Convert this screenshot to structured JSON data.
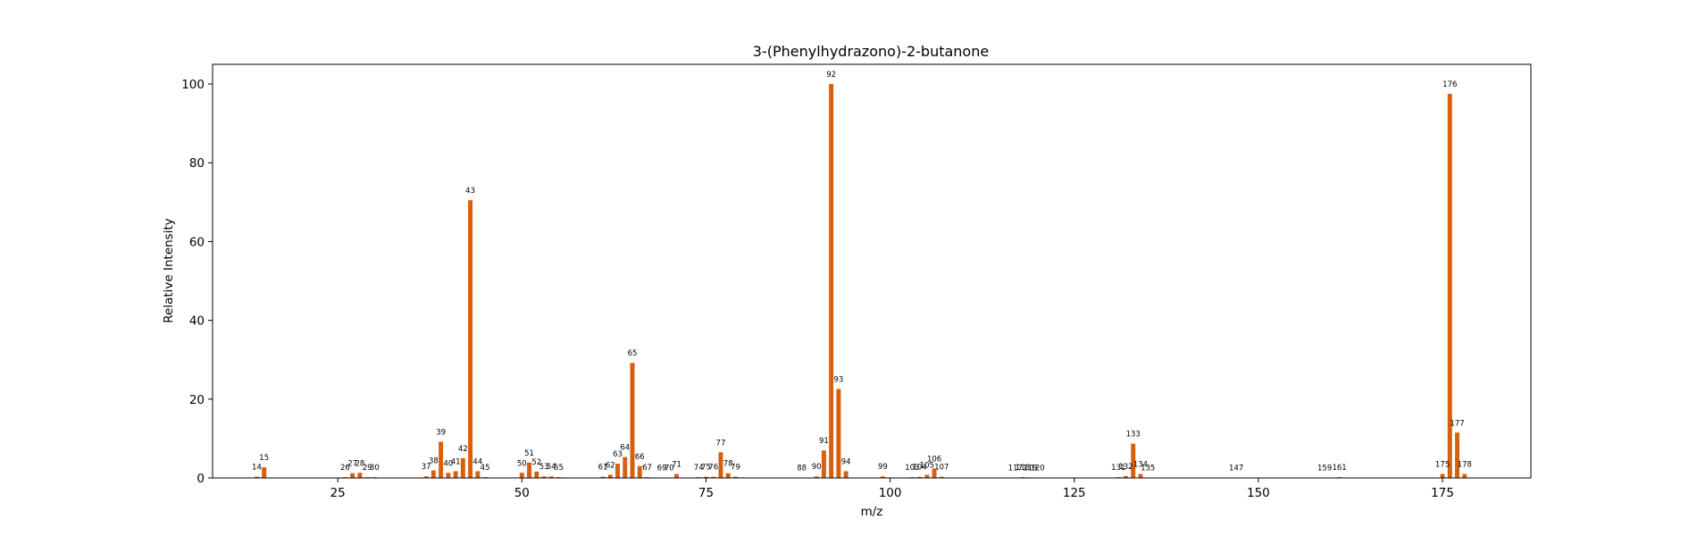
{
  "chart_data": {
    "type": "bar",
    "title": "3-(Phenylhydrazono)-2-butanone",
    "xlabel": "m/z",
    "ylabel": "Relative Intensity",
    "xlim": [
      8,
      187
    ],
    "ylim": [
      0,
      105
    ],
    "xticks": [
      25,
      50,
      75,
      100,
      125,
      150,
      175
    ],
    "yticks": [
      0,
      20,
      40,
      60,
      80,
      100
    ],
    "bar_color": "#d95f0e",
    "grid": false,
    "legend": "none",
    "peaks": [
      {
        "mz": 14,
        "intensity": 0.3
      },
      {
        "mz": 15,
        "intensity": 2.7
      },
      {
        "mz": 26,
        "intensity": 0.2
      },
      {
        "mz": 27,
        "intensity": 1.2
      },
      {
        "mz": 28,
        "intensity": 1.3
      },
      {
        "mz": 29,
        "intensity": 0.2
      },
      {
        "mz": 30,
        "intensity": 0.2
      },
      {
        "mz": 37,
        "intensity": 0.4
      },
      {
        "mz": 38,
        "intensity": 1.9
      },
      {
        "mz": 39,
        "intensity": 9.2
      },
      {
        "mz": 40,
        "intensity": 1.3
      },
      {
        "mz": 41,
        "intensity": 1.7
      },
      {
        "mz": 42,
        "intensity": 5.0
      },
      {
        "mz": 43,
        "intensity": 70.5
      },
      {
        "mz": 44,
        "intensity": 1.7
      },
      {
        "mz": 45,
        "intensity": 0.2
      },
      {
        "mz": 50,
        "intensity": 1.3
      },
      {
        "mz": 51,
        "intensity": 3.9
      },
      {
        "mz": 52,
        "intensity": 1.6
      },
      {
        "mz": 53,
        "intensity": 0.4
      },
      {
        "mz": 54,
        "intensity": 0.4
      },
      {
        "mz": 55,
        "intensity": 0.2
      },
      {
        "mz": 61,
        "intensity": 0.3
      },
      {
        "mz": 62,
        "intensity": 0.8
      },
      {
        "mz": 63,
        "intensity": 3.6
      },
      {
        "mz": 64,
        "intensity": 5.3
      },
      {
        "mz": 65,
        "intensity": 29.2
      },
      {
        "mz": 66,
        "intensity": 3.0
      },
      {
        "mz": 67,
        "intensity": 0.2
      },
      {
        "mz": 69,
        "intensity": 0.1
      },
      {
        "mz": 70,
        "intensity": 0.1
      },
      {
        "mz": 71,
        "intensity": 1.0
      },
      {
        "mz": 74,
        "intensity": 0.2
      },
      {
        "mz": 75,
        "intensity": 0.3
      },
      {
        "mz": 76,
        "intensity": 0.3
      },
      {
        "mz": 77,
        "intensity": 6.5
      },
      {
        "mz": 78,
        "intensity": 1.2
      },
      {
        "mz": 79,
        "intensity": 0.3
      },
      {
        "mz": 88,
        "intensity": 0.1
      },
      {
        "mz": 90,
        "intensity": 0.4
      },
      {
        "mz": 91,
        "intensity": 7.0
      },
      {
        "mz": 92,
        "intensity": 100.0
      },
      {
        "mz": 93,
        "intensity": 22.6
      },
      {
        "mz": 94,
        "intensity": 1.7
      },
      {
        "mz": 99,
        "intensity": 0.4
      },
      {
        "mz": 103,
        "intensity": 0.2
      },
      {
        "mz": 104,
        "intensity": 0.3
      },
      {
        "mz": 105,
        "intensity": 0.8
      },
      {
        "mz": 106,
        "intensity": 2.4
      },
      {
        "mz": 107,
        "intensity": 0.3
      },
      {
        "mz": 117,
        "intensity": 0.1
      },
      {
        "mz": 118,
        "intensity": 0.2
      },
      {
        "mz": 119,
        "intensity": 0.1
      },
      {
        "mz": 120,
        "intensity": 0.1
      },
      {
        "mz": 131,
        "intensity": 0.2
      },
      {
        "mz": 132,
        "intensity": 0.5
      },
      {
        "mz": 133,
        "intensity": 8.7
      },
      {
        "mz": 134,
        "intensity": 1.0
      },
      {
        "mz": 135,
        "intensity": 0.1
      },
      {
        "mz": 147,
        "intensity": 0.1
      },
      {
        "mz": 159,
        "intensity": 0.1
      },
      {
        "mz": 161,
        "intensity": 0.2
      },
      {
        "mz": 175,
        "intensity": 1.0
      },
      {
        "mz": 176,
        "intensity": 97.5
      },
      {
        "mz": 177,
        "intensity": 11.5
      },
      {
        "mz": 178,
        "intensity": 1.0
      }
    ]
  }
}
